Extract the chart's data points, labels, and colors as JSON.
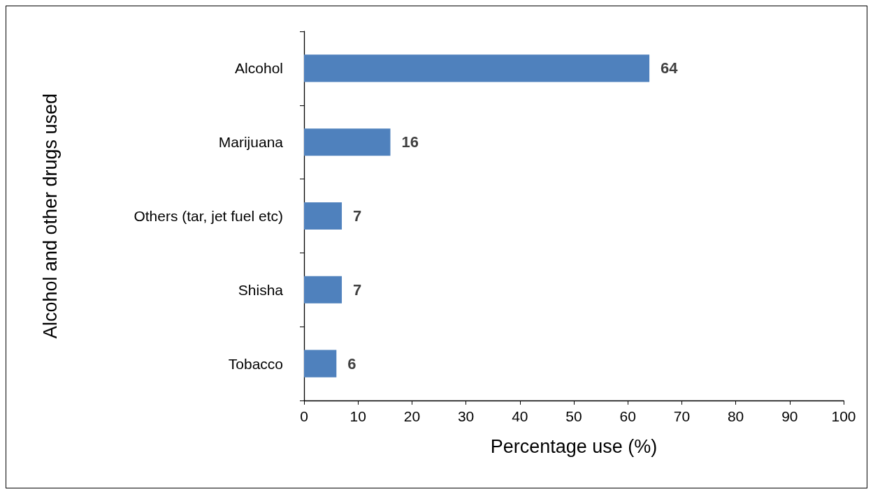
{
  "chart_data": {
    "type": "bar",
    "orientation": "horizontal",
    "categories": [
      "Alcohol",
      "Marijuana",
      "Others (tar, jet fuel etc)",
      "Shisha",
      "Tobacco"
    ],
    "values": [
      64,
      16,
      7,
      7,
      6
    ],
    "color": "#4f81bd",
    "xlim": [
      0,
      100
    ],
    "xticks": [
      0,
      10,
      20,
      30,
      40,
      50,
      60,
      70,
      80,
      90,
      100
    ],
    "xlabel": "Percentage use (%)",
    "ylabel": "Alcohol and other drugs used",
    "data_labels": true
  }
}
